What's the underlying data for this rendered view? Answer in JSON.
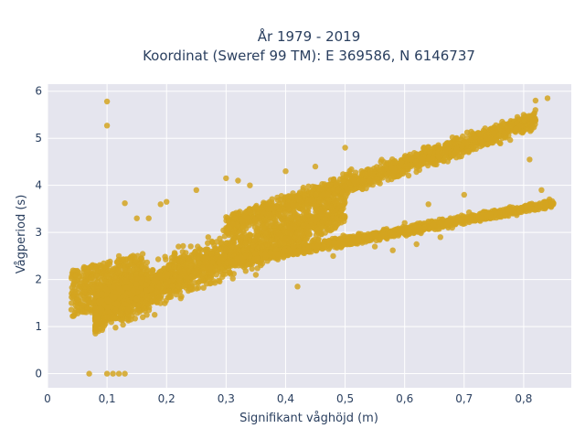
{
  "chart_data": {
    "type": "scatter",
    "title_line1": "År 1979 - 2019",
    "title_line2": "Koordinat (Sweref 99 TM): E 369586, N 6146737",
    "xlabel": "Signifikant våghöjd (m)",
    "ylabel": "Vågperiod (s)",
    "xlim": [
      0,
      0.88
    ],
    "ylim": [
      -0.3,
      6.15
    ],
    "x_ticks": [
      0,
      0.1,
      0.2,
      0.3,
      0.4,
      0.5,
      0.6,
      0.7,
      0.8
    ],
    "x_tick_labels": [
      "0",
      "0,1",
      "0,2",
      "0,3",
      "0,4",
      "0,5",
      "0,6",
      "0,7",
      "0,8"
    ],
    "y_ticks": [
      0,
      1,
      2,
      3,
      4,
      5,
      6
    ],
    "y_tick_labels": [
      "0",
      "1",
      "2",
      "3",
      "4",
      "5",
      "6"
    ],
    "grid": true,
    "colors": {
      "background": "#e5e5ee",
      "grid": "#ffffff",
      "marker": "#d4a520",
      "text": "#2a3f5f"
    },
    "series": [
      {
        "values_xy": [
          [
            0.04,
            1.36
          ],
          [
            0.05,
            1.42
          ],
          [
            0.06,
            1.45
          ],
          [
            0.07,
            1.5
          ],
          [
            0.08,
            1.4
          ],
          [
            0.09,
            1.55
          ],
          [
            0.1,
            5.78
          ],
          [
            0.1,
            5.27
          ],
          [
            0.07,
            0.0
          ],
          [
            0.1,
            0.0
          ],
          [
            0.11,
            0.0
          ],
          [
            0.12,
            0.0
          ],
          [
            0.13,
            0.0
          ],
          [
            0.1,
            1.2
          ],
          [
            0.12,
            1.8
          ],
          [
            0.12,
            2.5
          ],
          [
            0.13,
            3.62
          ],
          [
            0.15,
            3.3
          ],
          [
            0.17,
            3.3
          ],
          [
            0.19,
            3.6
          ],
          [
            0.2,
            3.65
          ],
          [
            0.25,
            3.9
          ],
          [
            0.3,
            4.15
          ],
          [
            0.34,
            4.0
          ],
          [
            0.4,
            4.3
          ],
          [
            0.45,
            4.4
          ],
          [
            0.42,
            1.85
          ],
          [
            0.48,
            2.5
          ],
          [
            0.55,
            2.7
          ],
          [
            0.62,
            2.75
          ],
          [
            0.66,
            2.9
          ],
          [
            0.56,
            4.5
          ],
          [
            0.6,
            4.6
          ],
          [
            0.65,
            4.8
          ],
          [
            0.7,
            4.9
          ],
          [
            0.75,
            5.1
          ],
          [
            0.78,
            5.3
          ],
          [
            0.8,
            5.5
          ],
          [
            0.82,
            5.8
          ],
          [
            0.84,
            5.85
          ],
          [
            0.81,
            4.55
          ],
          [
            0.85,
            3.62
          ],
          [
            0.83,
            3.9
          ],
          [
            0.81,
            3.6
          ],
          [
            0.78,
            3.45
          ],
          [
            0.73,
            3.3
          ],
          [
            0.68,
            3.1
          ],
          [
            0.6,
            3.2
          ],
          [
            0.64,
            3.6
          ],
          [
            0.7,
            3.8
          ],
          [
            0.58,
            2.62
          ],
          [
            0.35,
            2.1
          ],
          [
            0.3,
            2.6
          ],
          [
            0.27,
            2.9
          ],
          [
            0.22,
            2.7
          ],
          [
            0.18,
            1.25
          ],
          [
            0.16,
            1.2
          ],
          [
            0.14,
            1.15
          ],
          [
            0.5,
            4.8
          ],
          [
            0.59,
            4.2
          ],
          [
            0.32,
            4.1
          ]
        ]
      }
    ]
  }
}
